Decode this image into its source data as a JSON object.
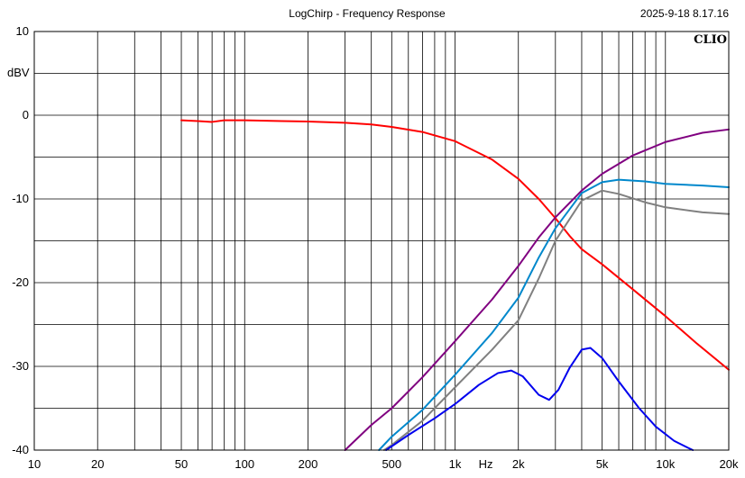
{
  "header": {
    "title": "LogChirp - Frequency Response",
    "timestamp": "2025-9-18 8.17.16",
    "logo": "CLIO"
  },
  "chart_data": {
    "type": "line",
    "title": "LogChirp - Frequency Response",
    "ylabel": "dBV",
    "xlabel": "Hz",
    "x_scale": "log",
    "xlim": [
      10,
      20000
    ],
    "ylim": [
      -40,
      10
    ],
    "grid": true,
    "y_ticks": [
      {
        "value": 10,
        "label": "10"
      },
      {
        "value": 0,
        "label": "0"
      },
      {
        "value": -10,
        "label": "-10"
      },
      {
        "value": -20,
        "label": "-20"
      },
      {
        "value": -30,
        "label": "-30"
      },
      {
        "value": -40,
        "label": "-40"
      }
    ],
    "x_ticks": [
      {
        "value": 10,
        "label": "10"
      },
      {
        "value": 20,
        "label": "20"
      },
      {
        "value": 50,
        "label": "50"
      },
      {
        "value": 100,
        "label": "100"
      },
      {
        "value": 200,
        "label": "200"
      },
      {
        "value": 500,
        "label": "500"
      },
      {
        "value": 1000,
        "label": "1k"
      },
      {
        "value": 2000,
        "label": "2k"
      },
      {
        "value": 5000,
        "label": "5k"
      },
      {
        "value": 10000,
        "label": "10k"
      },
      {
        "value": 20000,
        "label": "20k"
      }
    ],
    "x_unit_label_value": 1400,
    "series": [
      {
        "color": "#ff0000",
        "points": [
          [
            50,
            -0.6
          ],
          [
            60,
            -0.7
          ],
          [
            70,
            -0.8
          ],
          [
            80,
            -0.6
          ],
          [
            100,
            -0.6
          ],
          [
            150,
            -0.7
          ],
          [
            200,
            -0.75
          ],
          [
            300,
            -0.9
          ],
          [
            400,
            -1.1
          ],
          [
            500,
            -1.4
          ],
          [
            700,
            -2.0
          ],
          [
            1000,
            -3.1
          ],
          [
            1500,
            -5.3
          ],
          [
            2000,
            -7.6
          ],
          [
            2500,
            -10.0
          ],
          [
            3000,
            -12.3
          ],
          [
            3500,
            -14.4
          ],
          [
            4000,
            -16.0
          ],
          [
            5000,
            -17.8
          ],
          [
            7000,
            -20.8
          ],
          [
            10000,
            -24.0
          ],
          [
            14000,
            -27.2
          ],
          [
            20000,
            -30.4
          ]
        ]
      },
      {
        "color": "#800080",
        "points": [
          [
            300,
            -40
          ],
          [
            400,
            -37.0
          ],
          [
            500,
            -35.0
          ],
          [
            700,
            -31.3
          ],
          [
            1000,
            -27.0
          ],
          [
            1500,
            -22.0
          ],
          [
            2000,
            -18.0
          ],
          [
            2500,
            -14.6
          ],
          [
            3000,
            -12.2
          ],
          [
            4000,
            -9.0
          ],
          [
            5000,
            -7.0
          ],
          [
            7000,
            -4.8
          ],
          [
            10000,
            -3.2
          ],
          [
            15000,
            -2.1
          ],
          [
            20000,
            -1.7
          ]
        ]
      },
      {
        "color": "#0088cc",
        "points": [
          [
            435,
            -40
          ],
          [
            500,
            -38.4
          ],
          [
            700,
            -35.2
          ],
          [
            1000,
            -31.0
          ],
          [
            1500,
            -26.0
          ],
          [
            2000,
            -21.8
          ],
          [
            2500,
            -17.0
          ],
          [
            3000,
            -13.5
          ],
          [
            4000,
            -9.3
          ],
          [
            5000,
            -8.0
          ],
          [
            6000,
            -7.7
          ],
          [
            8000,
            -7.9
          ],
          [
            10000,
            -8.2
          ],
          [
            15000,
            -8.4
          ],
          [
            20000,
            -8.6
          ]
        ]
      },
      {
        "color": "#808080",
        "points": [
          [
            460,
            -40
          ],
          [
            500,
            -39.4
          ],
          [
            700,
            -36.5
          ],
          [
            1000,
            -32.5
          ],
          [
            1500,
            -28.0
          ],
          [
            2000,
            -24.5
          ],
          [
            2500,
            -19.5
          ],
          [
            3000,
            -15.0
          ],
          [
            4000,
            -10.2
          ],
          [
            5000,
            -9.0
          ],
          [
            6000,
            -9.4
          ],
          [
            8000,
            -10.4
          ],
          [
            10000,
            -11.0
          ],
          [
            15000,
            -11.6
          ],
          [
            20000,
            -11.8
          ]
        ]
      },
      {
        "color": "#0000ee",
        "points": [
          [
            470,
            -40
          ],
          [
            600,
            -38.2
          ],
          [
            800,
            -36.2
          ],
          [
            1000,
            -34.5
          ],
          [
            1300,
            -32.2
          ],
          [
            1600,
            -30.8
          ],
          [
            1850,
            -30.5
          ],
          [
            2100,
            -31.2
          ],
          [
            2500,
            -33.4
          ],
          [
            2800,
            -34.0
          ],
          [
            3100,
            -32.8
          ],
          [
            3500,
            -30.2
          ],
          [
            4000,
            -28.0
          ],
          [
            4400,
            -27.8
          ],
          [
            5000,
            -29.0
          ],
          [
            6000,
            -31.8
          ],
          [
            7500,
            -35.0
          ],
          [
            9000,
            -37.2
          ],
          [
            11000,
            -38.9
          ],
          [
            12500,
            -39.6
          ],
          [
            13500,
            -40
          ]
        ]
      }
    ]
  }
}
